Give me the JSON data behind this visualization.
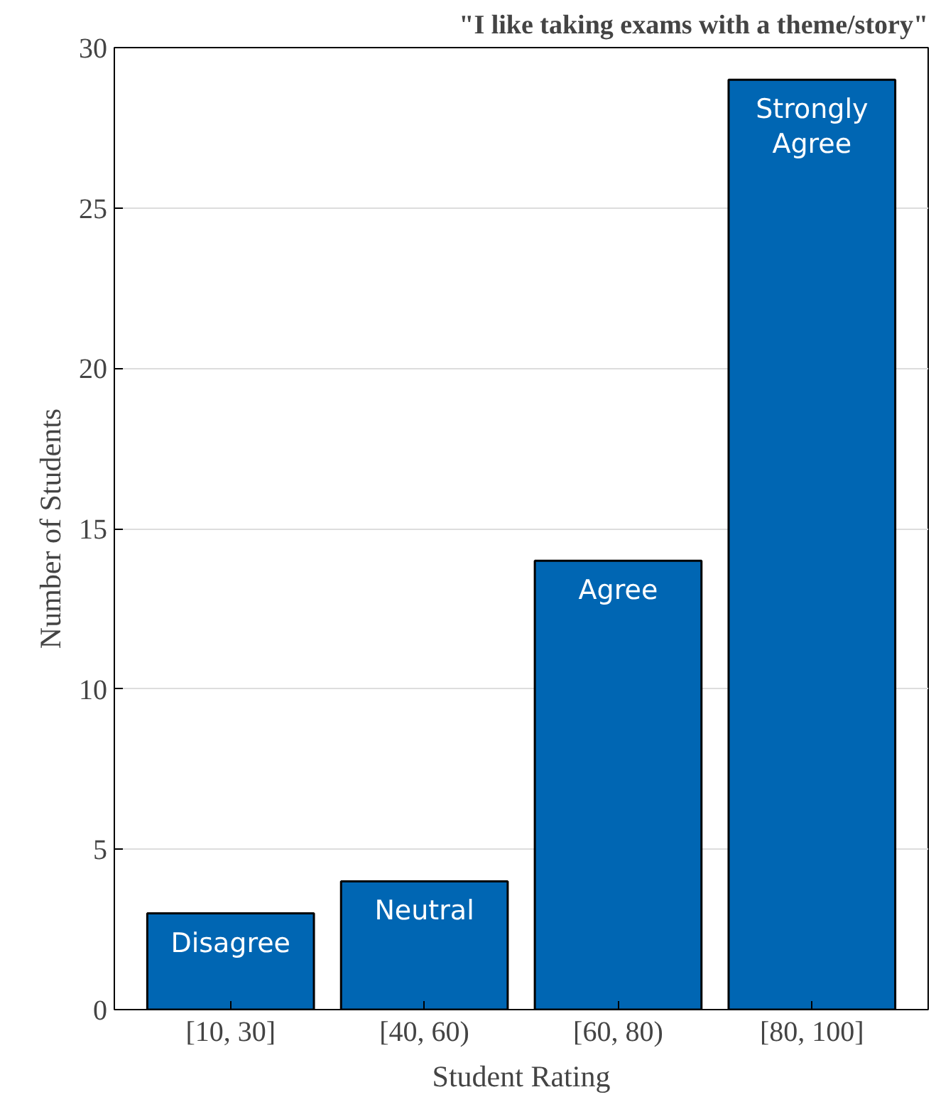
{
  "chart_data": {
    "type": "bar",
    "title": "\"I like taking exams with a theme/story\"",
    "xlabel": "Student Rating",
    "ylabel": "Number of Students",
    "categories": [
      "[10, 30]",
      "[40, 60)",
      "[60, 80)",
      "[80, 100]"
    ],
    "values": [
      3,
      4,
      14,
      29
    ],
    "color": "#0066b3",
    "ylim": [
      0,
      30
    ],
    "yticks": [
      0,
      5,
      10,
      15,
      20,
      25,
      30
    ],
    "grid": "y",
    "annotations": [
      "Disagree",
      "Neutral",
      "Agree",
      "Strongly\nAgree"
    ]
  }
}
